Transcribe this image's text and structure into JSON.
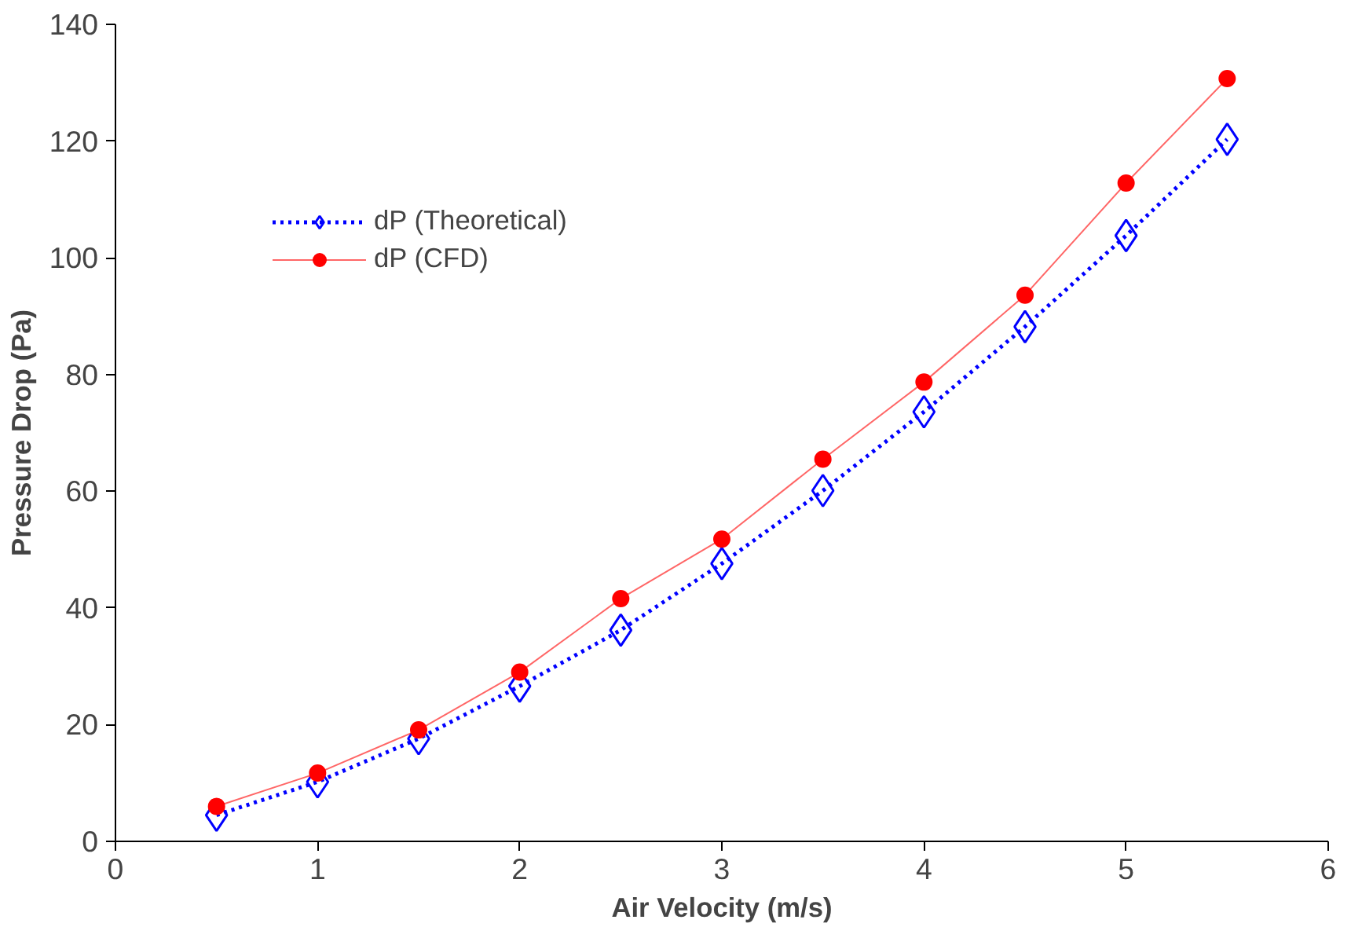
{
  "chart_data": {
    "type": "line",
    "xlabel": "Air Velocity (m/s)",
    "ylabel": "Pressure Drop (Pa)",
    "x": [
      0.5,
      1,
      1.5,
      2,
      2.5,
      3,
      3.5,
      4,
      4.5,
      5,
      5.5
    ],
    "series": [
      {
        "name": "dP (Theoretical)",
        "color": "#0000ff",
        "marker": "diamond",
        "line_style": "dotted",
        "values": [
          4.5,
          10.2,
          17.6,
          26.6,
          36.2,
          47.6,
          60.1,
          73.6,
          88.2,
          103.8,
          120.3
        ]
      },
      {
        "name": "dP (CFD)",
        "color": "#ff0000",
        "marker": "circle",
        "line_style": "solid",
        "values": [
          6.0,
          11.7,
          19.1,
          29.0,
          41.6,
          51.8,
          65.5,
          78.7,
          93.6,
          112.8,
          130.7
        ]
      }
    ],
    "xlim": [
      0,
      6
    ],
    "xticks": [
      0,
      1,
      2,
      3,
      4,
      5,
      6
    ],
    "ylim": [
      0,
      140
    ],
    "yticks": [
      0,
      20,
      40,
      60,
      80,
      100,
      120,
      140
    ],
    "grid": false,
    "legend": "top left"
  }
}
